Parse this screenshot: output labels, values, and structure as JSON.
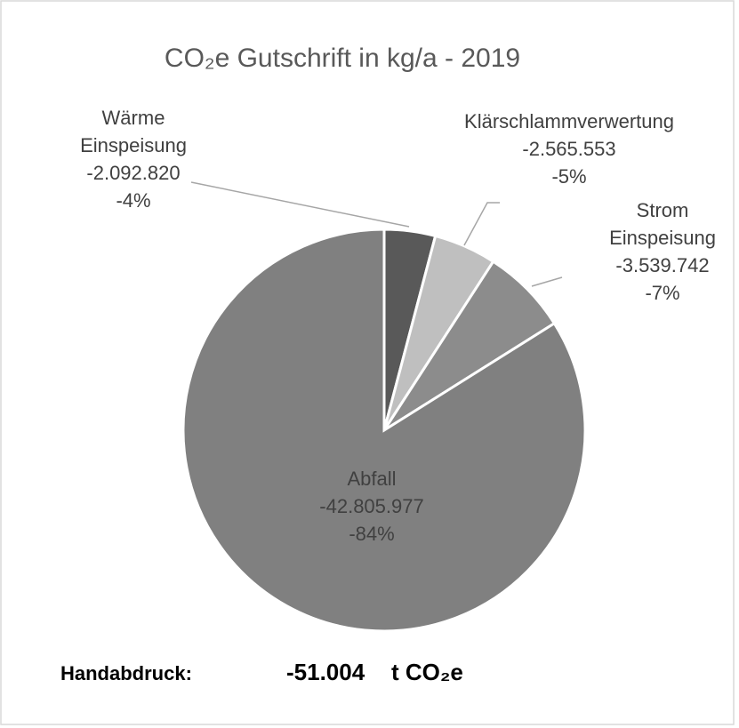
{
  "chart_data": {
    "type": "pie",
    "title": "CO₂e Gutschrift in kg/a - 2019",
    "categories": [
      "Wärme Einspeisung",
      "Klärschlammverwertung",
      "Strom Einspeisung",
      "Abfall"
    ],
    "values": [
      -2092820,
      -2565553,
      -3539742,
      -42805977
    ],
    "value_labels": [
      "-2.092.820",
      "-2.565.553",
      "-3.539.742",
      "-42.805.977"
    ],
    "percents": [
      -4,
      -5,
      -7,
      -84
    ],
    "percent_labels": [
      "-4%",
      "-5%",
      "-7%",
      "-84%"
    ],
    "colors": [
      "#595959",
      "#bfbfbf",
      "#8c8c8c",
      "#808080"
    ],
    "total_label": "Handabdruck:",
    "total": {
      "value": -51004,
      "label": "-51.004"
    },
    "total_unit": "t CO₂e"
  }
}
